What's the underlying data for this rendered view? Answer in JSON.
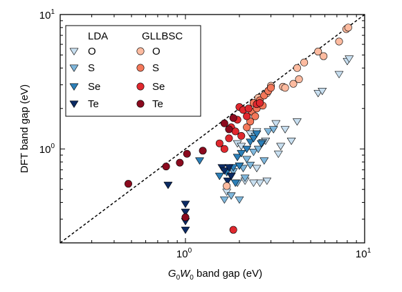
{
  "chart_data": {
    "type": "scatter",
    "xscale": "log",
    "yscale": "log",
    "xlim": [
      0.2,
      10
    ],
    "ylim": [
      0.2,
      10
    ],
    "xlabel_parts": [
      "G",
      "0",
      "W",
      "0",
      " band gap (eV)"
    ],
    "ylabel": "DFT band gap (eV)",
    "x_tick_labels": [
      {
        "value": 1,
        "base": "10",
        "exp": "0"
      },
      {
        "value": 10,
        "base": "10",
        "exp": "1"
      }
    ],
    "y_tick_labels": [
      {
        "value": 1,
        "base": "10",
        "exp": "0"
      },
      {
        "value": 10,
        "base": "10",
        "exp": "1"
      }
    ],
    "grid": false,
    "legend_position": "top-left",
    "reference_line": {
      "style": "dashed",
      "from": [
        0.2,
        0.2
      ],
      "to": [
        10,
        10
      ]
    },
    "legend": {
      "col_titles": [
        "LDA",
        "GLLBSC"
      ],
      "row_labels": [
        "O",
        "S",
        "Se",
        "Te"
      ]
    },
    "series": [
      {
        "method": "LDA",
        "anion": "O",
        "marker": "triangle-down",
        "color": "#c8dff0",
        "points": [
          [
            1.7,
            0.48
          ],
          [
            1.95,
            1.1
          ],
          [
            2.05,
            1.05
          ],
          [
            2.3,
            1.3
          ],
          [
            2.5,
            1.35
          ],
          [
            2.5,
            0.72
          ],
          [
            2.6,
            0.56
          ],
          [
            2.8,
            1.15
          ],
          [
            3.2,
            1.55
          ],
          [
            3.4,
            1.05
          ],
          [
            3.3,
            0.92
          ],
          [
            3.6,
            1.4
          ],
          [
            3.9,
            1.15
          ],
          [
            4.2,
            1.6
          ],
          [
            5.5,
            2.6
          ],
          [
            5.8,
            2.7
          ],
          [
            7.2,
            3.6
          ],
          [
            8.0,
            4.5
          ],
          [
            8.2,
            4.7
          ],
          [
            2.85,
            0.58
          ],
          [
            2.4,
            0.56
          ],
          [
            2.15,
            0.58
          ]
        ]
      },
      {
        "method": "LDA",
        "anion": "S",
        "marker": "triangle-down",
        "color": "#7fb7dc",
        "points": [
          [
            1.65,
            0.42
          ],
          [
            1.8,
            0.45
          ],
          [
            1.95,
            0.56
          ],
          [
            2.1,
            0.72
          ],
          [
            2.2,
            0.84
          ],
          [
            2.3,
            0.76
          ],
          [
            2.4,
            0.95
          ],
          [
            2.55,
            1.0
          ],
          [
            2.7,
            1.12
          ],
          [
            2.9,
            1.35
          ],
          [
            3.1,
            1.4
          ],
          [
            2.0,
            0.42
          ],
          [
            2.15,
            0.61
          ],
          [
            1.85,
            0.68
          ],
          [
            2.45,
            1.25
          ],
          [
            2.75,
            0.82
          ]
        ]
      },
      {
        "method": "LDA",
        "anion": "Se",
        "marker": "triangle-down",
        "color": "#2c7fb8",
        "points": [
          [
            1.2,
            0.82
          ],
          [
            1.55,
            0.63
          ],
          [
            1.7,
            0.67
          ],
          [
            1.8,
            0.63
          ],
          [
            1.85,
            0.73
          ],
          [
            1.95,
            0.87
          ],
          [
            2.05,
            0.93
          ],
          [
            2.2,
            1.0
          ],
          [
            2.3,
            1.13
          ],
          [
            2.4,
            1.2
          ],
          [
            2.5,
            1.3
          ],
          [
            2.65,
            1.1
          ],
          [
            2.0,
            0.75
          ],
          [
            1.9,
            0.56
          ]
        ]
      },
      {
        "method": "LDA",
        "anion": "Te",
        "marker": "triangle-down",
        "color": "#0b2a63",
        "points": [
          [
            0.8,
            0.54
          ],
          [
            1.0,
            0.39
          ],
          [
            1.0,
            0.34
          ],
          [
            1.0,
            0.29
          ],
          [
            1.0,
            0.25
          ],
          [
            1.6,
            0.73
          ],
          [
            1.65,
            0.69
          ],
          [
            1.72,
            0.58
          ],
          [
            1.8,
            0.63
          ],
          [
            1.75,
            0.73
          ]
        ]
      },
      {
        "method": "GLLBSC",
        "anion": "O",
        "marker": "circle",
        "color": "#fdbba0",
        "points": [
          [
            1.7,
            0.53
          ],
          [
            2.55,
            2.4
          ],
          [
            2.85,
            2.6
          ],
          [
            3.0,
            2.95
          ],
          [
            3.5,
            2.9
          ],
          [
            3.6,
            2.85
          ],
          [
            4.0,
            3.05
          ],
          [
            4.3,
            3.3
          ],
          [
            4.2,
            4.0
          ],
          [
            4.6,
            4.4
          ],
          [
            5.5,
            5.3
          ],
          [
            5.9,
            4.9
          ],
          [
            7.2,
            6.3
          ],
          [
            7.9,
            7.8
          ],
          [
            8.1,
            8.0
          ]
        ]
      },
      {
        "method": "GLLBSC",
        "anion": "S",
        "marker": "circle",
        "color": "#f4785a",
        "points": [
          [
            2.2,
            1.45
          ],
          [
            2.35,
            1.9
          ],
          [
            2.4,
            2.2
          ],
          [
            2.5,
            2.0
          ],
          [
            2.6,
            2.3
          ],
          [
            2.7,
            2.1
          ],
          [
            2.75,
            2.5
          ],
          [
            2.9,
            2.7
          ],
          [
            3.0,
            2.85
          ],
          [
            2.45,
            1.75
          ],
          [
            2.3,
            1.6
          ]
        ]
      },
      {
        "method": "GLLBSC",
        "anion": "Se",
        "marker": "circle",
        "color": "#e0282e",
        "points": [
          [
            1.55,
            1.1
          ],
          [
            1.65,
            1.0
          ],
          [
            1.75,
            1.2
          ],
          [
            1.8,
            1.45
          ],
          [
            1.9,
            1.35
          ],
          [
            1.95,
            1.65
          ],
          [
            2.0,
            2.05
          ],
          [
            2.1,
            1.95
          ],
          [
            2.2,
            1.75
          ],
          [
            2.05,
            1.25
          ],
          [
            2.25,
            2.0
          ],
          [
            2.5,
            2.15
          ],
          [
            2.6,
            2.2
          ],
          [
            1.85,
            0.25
          ]
        ]
      },
      {
        "method": "GLLBSC",
        "anion": "Te",
        "marker": "circle",
        "color": "#8b0a1e",
        "points": [
          [
            0.48,
            0.55
          ],
          [
            0.78,
            0.74
          ],
          [
            0.93,
            0.79
          ],
          [
            1.02,
            0.92
          ],
          [
            1.25,
            0.97
          ],
          [
            1.65,
            1.55
          ],
          [
            1.75,
            1.4
          ],
          [
            1.85,
            1.7
          ],
          [
            1.0,
            0.31
          ]
        ]
      }
    ]
  }
}
